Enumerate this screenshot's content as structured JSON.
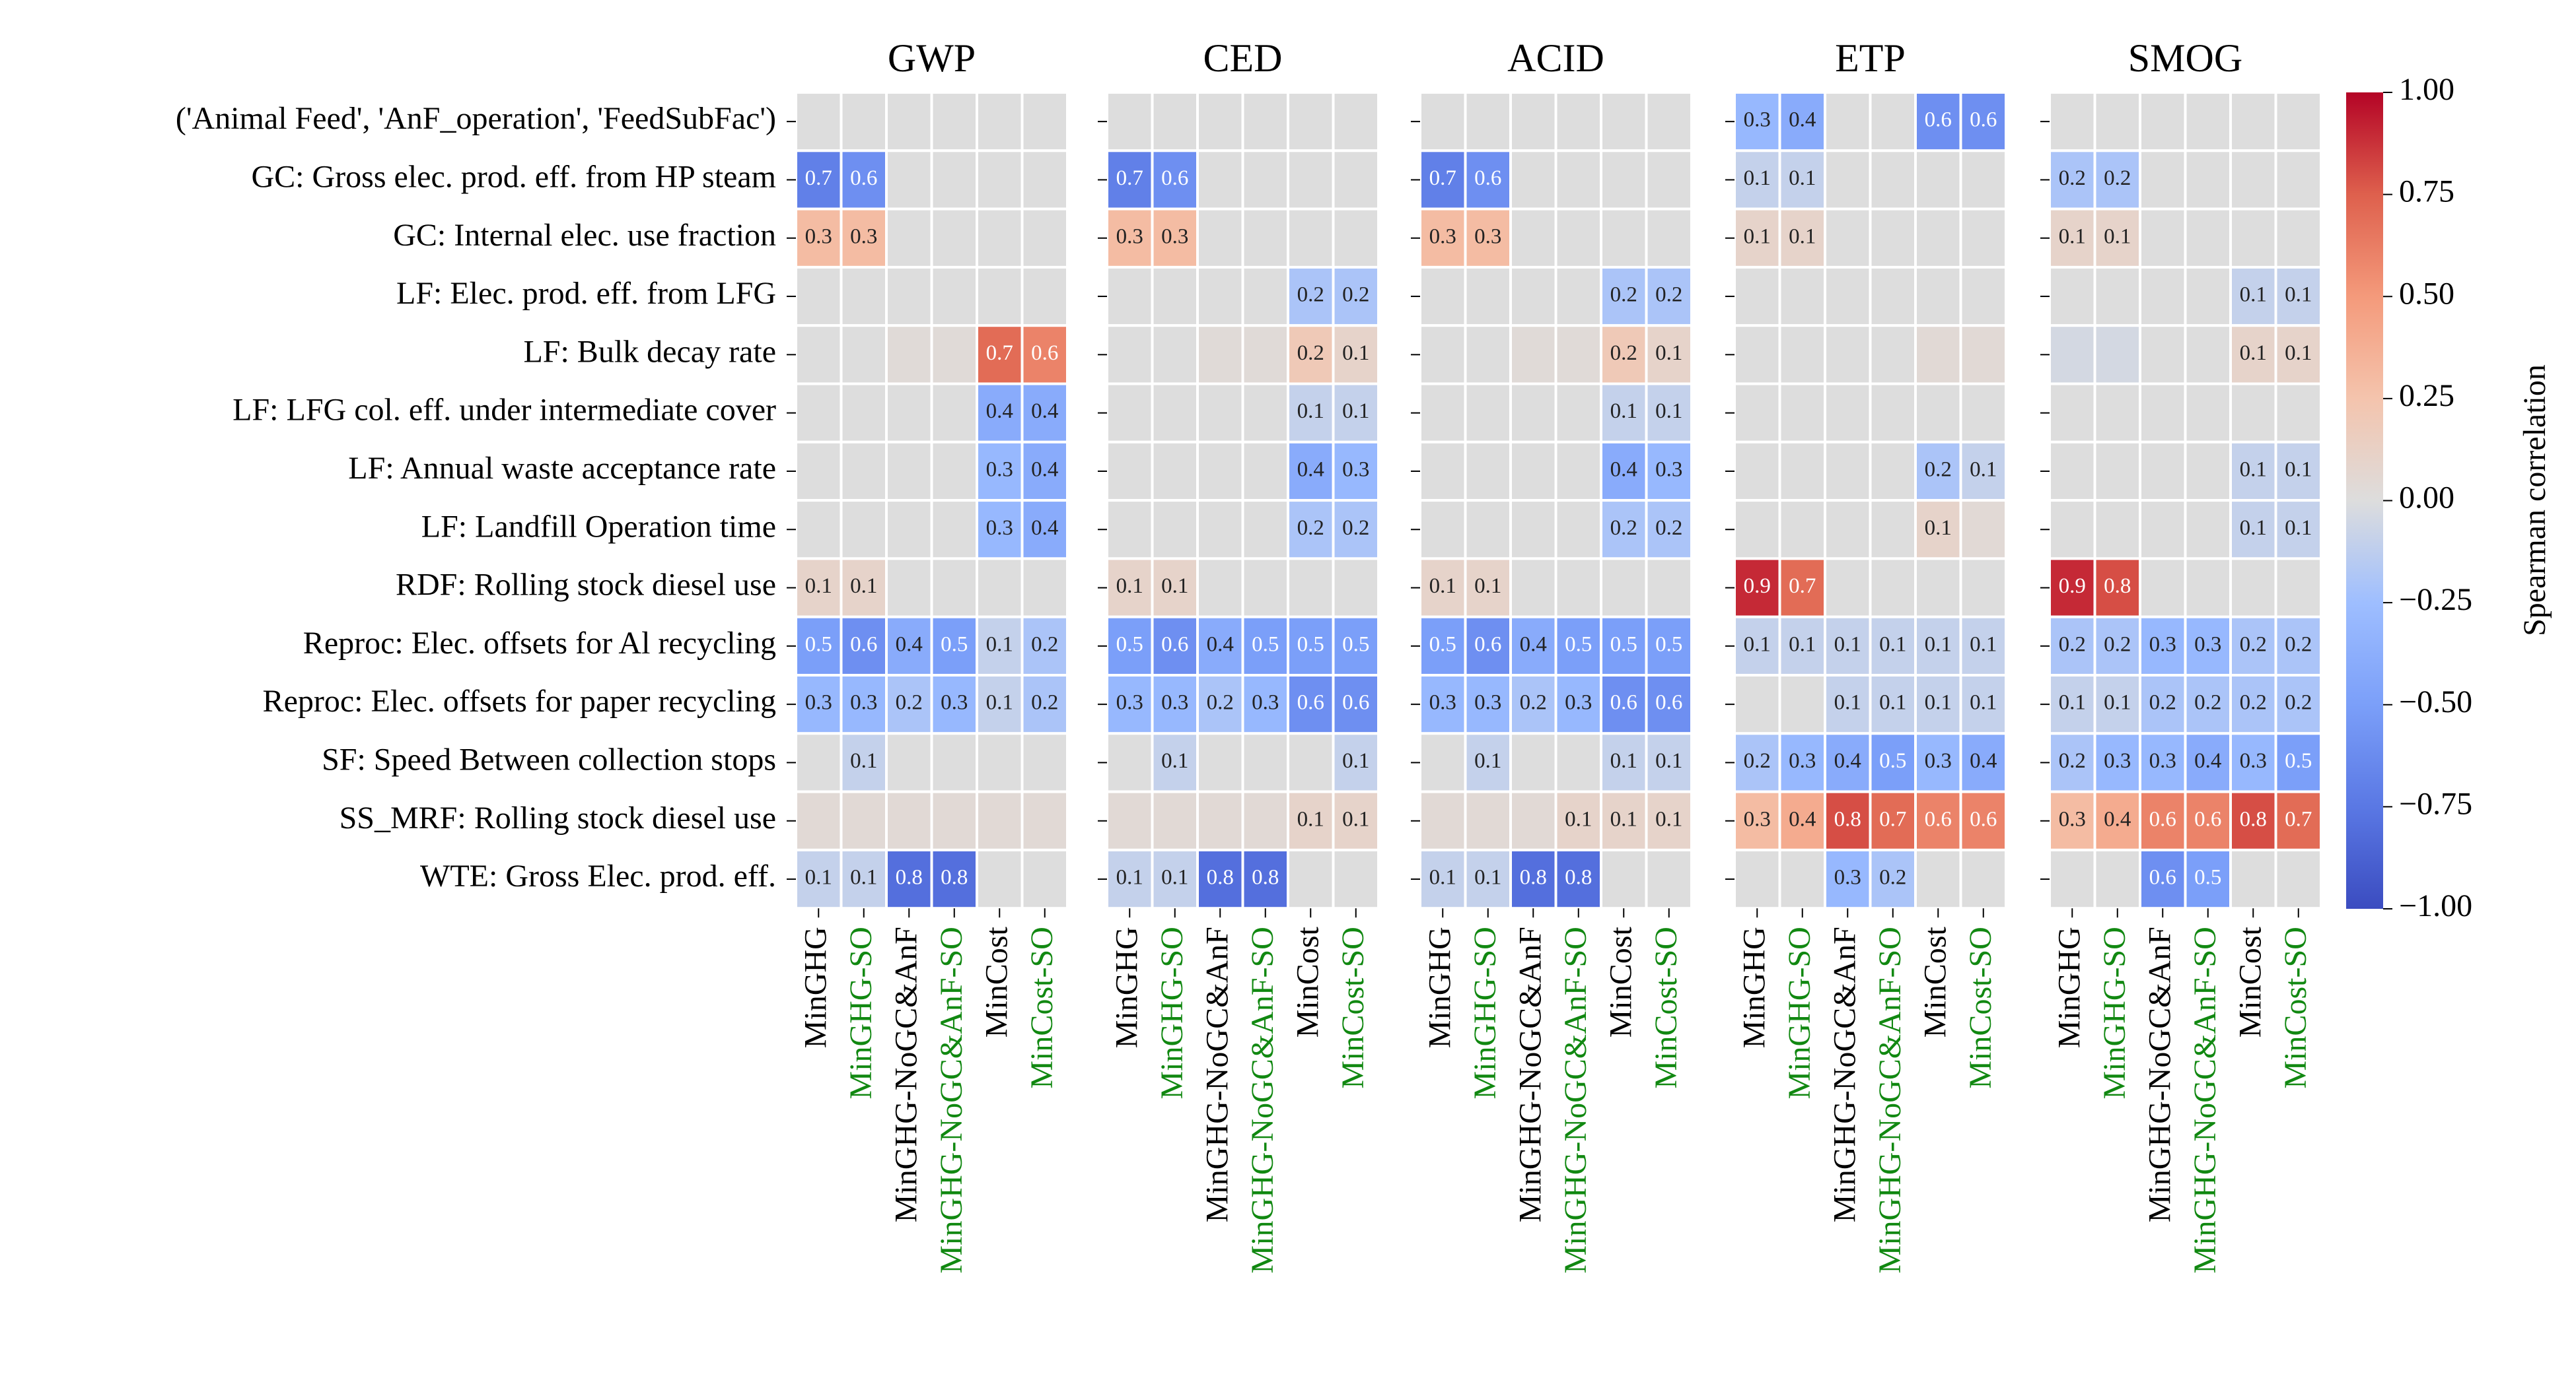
{
  "chart_data": {
    "type": "heatmap",
    "rows": [
      "('Animal Feed', 'AnF_operation', 'FeedSubFac')",
      "GC: Gross elec. prod. eff. from HP steam",
      "GC: Internal elec. use fraction",
      "LF: Elec. prod. eff. from LFG",
      "LF: Bulk decay rate",
      "LF: LFG col. eff. under intermediate cover",
      "LF: Annual waste acceptance rate",
      "LF: Landfill Operation time",
      "RDF: Rolling stock diesel use",
      "Reproc: Elec. offsets for Al recycling",
      "Reproc: Elec. offsets for paper recycling",
      "SF: Speed Between collection stops",
      "SS_MRF: Rolling stock diesel use",
      "WTE: Gross Elec. prod. eff."
    ],
    "columns": [
      "MinGHG",
      "MinGHG-SO",
      "MinGHG-NoGC&AnF",
      "MinGHG-NoGC&AnF-SO",
      "MinCost",
      "MinCost-SO"
    ],
    "column_colors": [
      "#000000",
      "#118811",
      "#000000",
      "#118811",
      "#000000",
      "#118811"
    ],
    "colorbar": {
      "label": "Spearman correlation",
      "range": [
        -1.0,
        1.0
      ],
      "ticks": [
        "1.00",
        "0.75",
        "0.50",
        "0.25",
        "0.00",
        "−0.25",
        "−0.50",
        "−0.75",
        "−1.00"
      ]
    },
    "panels": [
      {
        "title": "GWP",
        "values": [
          [
            0.0,
            0.0,
            0.0,
            0.0,
            0.0,
            0.0
          ],
          [
            -0.7,
            -0.6,
            0.0,
            0.0,
            0.0,
            0.0
          ],
          [
            0.3,
            0.3,
            0.0,
            0.0,
            0.0,
            0.0
          ],
          [
            0.0,
            0.0,
            0.0,
            0.0,
            0.0,
            0.0
          ],
          [
            0.0,
            0.0,
            0.03,
            0.03,
            0.7,
            0.6
          ],
          [
            0.0,
            0.0,
            0.0,
            0.0,
            -0.4,
            -0.4
          ],
          [
            0.0,
            0.0,
            0.0,
            0.0,
            -0.3,
            -0.4
          ],
          [
            0.0,
            0.0,
            0.0,
            0.0,
            -0.3,
            -0.4
          ],
          [
            0.1,
            0.1,
            0.0,
            0.0,
            0.0,
            0.0
          ],
          [
            -0.5,
            -0.6,
            -0.4,
            -0.5,
            -0.1,
            -0.2
          ],
          [
            -0.3,
            -0.3,
            -0.2,
            -0.3,
            -0.1,
            -0.2
          ],
          [
            0.0,
            -0.1,
            0.0,
            0.0,
            0.0,
            0.0
          ],
          [
            0.04,
            0.04,
            0.04,
            0.04,
            0.04,
            0.04
          ],
          [
            -0.1,
            -0.1,
            -0.8,
            -0.8,
            0.0,
            0.0
          ]
        ],
        "labels": [
          [
            "",
            "",
            "",
            "",
            "",
            ""
          ],
          [
            "0.7",
            "0.6",
            "",
            "",
            "",
            ""
          ],
          [
            "0.3",
            "0.3",
            "",
            "",
            "",
            ""
          ],
          [
            "",
            "",
            "",
            "",
            "",
            ""
          ],
          [
            "",
            "",
            "",
            "",
            "0.7",
            "0.6"
          ],
          [
            "",
            "",
            "",
            "",
            "0.4",
            "0.4"
          ],
          [
            "",
            "",
            "",
            "",
            "0.3",
            "0.4"
          ],
          [
            "",
            "",
            "",
            "",
            "0.3",
            "0.4"
          ],
          [
            "0.1",
            "0.1",
            "",
            "",
            "",
            ""
          ],
          [
            "0.5",
            "0.6",
            "0.4",
            "0.5",
            "0.1",
            "0.2"
          ],
          [
            "0.3",
            "0.3",
            "0.2",
            "0.3",
            "0.1",
            "0.2"
          ],
          [
            "",
            "0.1",
            "",
            "",
            "",
            ""
          ],
          [
            "",
            "",
            "",
            "",
            "",
            ""
          ],
          [
            "0.1",
            "0.1",
            "0.8",
            "0.8",
            "",
            ""
          ]
        ]
      },
      {
        "title": "CED",
        "values": [
          [
            0.0,
            0.0,
            0.0,
            0.0,
            0.0,
            0.0
          ],
          [
            -0.7,
            -0.6,
            0.0,
            0.0,
            0.0,
            0.0
          ],
          [
            0.3,
            0.3,
            0.0,
            0.0,
            0.0,
            0.0
          ],
          [
            0.0,
            0.0,
            0.0,
            0.0,
            -0.2,
            -0.2
          ],
          [
            0.0,
            0.0,
            0.03,
            0.03,
            0.2,
            0.1
          ],
          [
            0.0,
            0.0,
            0.0,
            0.0,
            -0.1,
            -0.1
          ],
          [
            0.0,
            0.0,
            0.0,
            0.0,
            -0.4,
            -0.3
          ],
          [
            0.0,
            0.0,
            0.0,
            0.0,
            -0.2,
            -0.2
          ],
          [
            0.1,
            0.1,
            0.0,
            0.0,
            0.0,
            0.0
          ],
          [
            -0.5,
            -0.6,
            -0.4,
            -0.5,
            -0.5,
            -0.5
          ],
          [
            -0.3,
            -0.3,
            -0.2,
            -0.3,
            -0.6,
            -0.6
          ],
          [
            0.0,
            -0.1,
            0.0,
            0.0,
            0.0,
            -0.1
          ],
          [
            0.04,
            0.04,
            0.04,
            0.04,
            0.1,
            0.1
          ],
          [
            -0.1,
            -0.1,
            -0.8,
            -0.8,
            0.0,
            0.0
          ]
        ],
        "labels": [
          [
            "",
            "",
            "",
            "",
            "",
            ""
          ],
          [
            "0.7",
            "0.6",
            "",
            "",
            "",
            ""
          ],
          [
            "0.3",
            "0.3",
            "",
            "",
            "",
            ""
          ],
          [
            "",
            "",
            "",
            "",
            "0.2",
            "0.2"
          ],
          [
            "",
            "",
            "",
            "",
            "0.2",
            "0.1"
          ],
          [
            "",
            "",
            "",
            "",
            "0.1",
            "0.1"
          ],
          [
            "",
            "",
            "",
            "",
            "0.4",
            "0.3"
          ],
          [
            "",
            "",
            "",
            "",
            "0.2",
            "0.2"
          ],
          [
            "0.1",
            "0.1",
            "",
            "",
            "",
            ""
          ],
          [
            "0.5",
            "0.6",
            "0.4",
            "0.5",
            "0.5",
            "0.5"
          ],
          [
            "0.3",
            "0.3",
            "0.2",
            "0.3",
            "0.6",
            "0.6"
          ],
          [
            "",
            "0.1",
            "",
            "",
            "",
            "0.1"
          ],
          [
            "",
            "",
            "",
            "",
            "0.1",
            "0.1"
          ],
          [
            "0.1",
            "0.1",
            "0.8",
            "0.8",
            "",
            ""
          ]
        ]
      },
      {
        "title": "ACID",
        "values": [
          [
            0.0,
            0.0,
            0.0,
            0.0,
            0.0,
            0.0
          ],
          [
            -0.7,
            -0.6,
            0.0,
            0.0,
            0.0,
            0.0
          ],
          [
            0.3,
            0.3,
            0.0,
            0.0,
            0.0,
            0.0
          ],
          [
            0.0,
            0.0,
            0.0,
            0.0,
            -0.2,
            -0.2
          ],
          [
            0.0,
            0.0,
            0.03,
            0.03,
            0.2,
            0.1
          ],
          [
            0.0,
            0.0,
            0.0,
            0.0,
            -0.1,
            -0.1
          ],
          [
            0.0,
            0.0,
            0.0,
            0.0,
            -0.4,
            -0.3
          ],
          [
            0.0,
            0.0,
            0.0,
            0.0,
            -0.2,
            -0.2
          ],
          [
            0.1,
            0.1,
            0.0,
            0.0,
            0.0,
            0.0
          ],
          [
            -0.5,
            -0.6,
            -0.4,
            -0.5,
            -0.5,
            -0.5
          ],
          [
            -0.3,
            -0.3,
            -0.2,
            -0.3,
            -0.6,
            -0.6
          ],
          [
            0.0,
            -0.1,
            0.0,
            0.0,
            -0.1,
            -0.1
          ],
          [
            0.04,
            0.04,
            0.04,
            0.1,
            0.1,
            0.1
          ],
          [
            -0.1,
            -0.1,
            -0.8,
            -0.8,
            0.0,
            0.0
          ]
        ],
        "labels": [
          [
            "",
            "",
            "",
            "",
            "",
            ""
          ],
          [
            "0.7",
            "0.6",
            "",
            "",
            "",
            ""
          ],
          [
            "0.3",
            "0.3",
            "",
            "",
            "",
            ""
          ],
          [
            "",
            "",
            "",
            "",
            "0.2",
            "0.2"
          ],
          [
            "",
            "",
            "",
            "",
            "0.2",
            "0.1"
          ],
          [
            "",
            "",
            "",
            "",
            "0.1",
            "0.1"
          ],
          [
            "",
            "",
            "",
            "",
            "0.4",
            "0.3"
          ],
          [
            "",
            "",
            "",
            "",
            "0.2",
            "0.2"
          ],
          [
            "0.1",
            "0.1",
            "",
            "",
            "",
            ""
          ],
          [
            "0.5",
            "0.6",
            "0.4",
            "0.5",
            "0.5",
            "0.5"
          ],
          [
            "0.3",
            "0.3",
            "0.2",
            "0.3",
            "0.6",
            "0.6"
          ],
          [
            "",
            "0.1",
            "",
            "",
            "0.1",
            "0.1"
          ],
          [
            "",
            "",
            "",
            "0.1",
            "0.1",
            "0.1"
          ],
          [
            "0.1",
            "0.1",
            "0.8",
            "0.8",
            "",
            ""
          ]
        ]
      },
      {
        "title": "ETP",
        "values": [
          [
            -0.3,
            -0.4,
            0.0,
            0.0,
            -0.6,
            -0.6
          ],
          [
            -0.1,
            -0.1,
            0.0,
            0.0,
            0.0,
            0.0
          ],
          [
            0.1,
            0.1,
            0.0,
            0.0,
            0.0,
            0.0
          ],
          [
            0.0,
            0.0,
            0.0,
            0.0,
            0.0,
            0.0
          ],
          [
            0.0,
            0.0,
            0.0,
            0.0,
            0.04,
            0.04
          ],
          [
            0.0,
            0.0,
            0.0,
            0.0,
            0.0,
            0.0
          ],
          [
            0.0,
            0.0,
            0.0,
            0.0,
            -0.2,
            -0.1
          ],
          [
            0.0,
            0.0,
            0.0,
            0.0,
            0.1,
            0.04
          ],
          [
            0.9,
            0.7,
            0.0,
            0.0,
            0.0,
            0.0
          ],
          [
            -0.1,
            -0.1,
            -0.1,
            -0.1,
            -0.1,
            -0.1
          ],
          [
            0.0,
            0.0,
            -0.1,
            -0.1,
            -0.1,
            -0.1
          ],
          [
            -0.2,
            -0.3,
            -0.4,
            -0.5,
            -0.3,
            -0.4
          ],
          [
            0.3,
            0.4,
            0.8,
            0.7,
            0.6,
            0.6
          ],
          [
            0.0,
            0.0,
            -0.3,
            -0.2,
            0.0,
            0.0
          ]
        ],
        "labels": [
          [
            "0.3",
            "0.4",
            "",
            "",
            "0.6",
            "0.6"
          ],
          [
            "0.1",
            "0.1",
            "",
            "",
            "",
            ""
          ],
          [
            "0.1",
            "0.1",
            "",
            "",
            "",
            ""
          ],
          [
            "",
            "",
            "",
            "",
            "",
            ""
          ],
          [
            "",
            "",
            "",
            "",
            "",
            ""
          ],
          [
            "",
            "",
            "",
            "",
            "",
            ""
          ],
          [
            "",
            "",
            "",
            "",
            "0.2",
            "0.1"
          ],
          [
            "",
            "",
            "",
            "",
            "0.1",
            ""
          ],
          [
            "0.9",
            "0.7",
            "",
            "",
            "",
            ""
          ],
          [
            "0.1",
            "0.1",
            "0.1",
            "0.1",
            "0.1",
            "0.1"
          ],
          [
            "",
            "",
            "0.1",
            "0.1",
            "0.1",
            "0.1"
          ],
          [
            "0.2",
            "0.3",
            "0.4",
            "0.5",
            "0.3",
            "0.4"
          ],
          [
            "0.3",
            "0.4",
            "0.8",
            "0.7",
            "0.6",
            "0.6"
          ],
          [
            "",
            "",
            "0.3",
            "0.2",
            "",
            ""
          ]
        ]
      },
      {
        "title": "SMOG",
        "values": [
          [
            0.0,
            0.0,
            0.0,
            0.0,
            0.0,
            0.0
          ],
          [
            -0.2,
            -0.2,
            0.0,
            0.0,
            0.0,
            0.0
          ],
          [
            0.1,
            0.1,
            0.0,
            0.0,
            0.0,
            0.0
          ],
          [
            0.0,
            0.0,
            0.0,
            0.0,
            -0.1,
            -0.1
          ],
          [
            -0.04,
            -0.04,
            0.0,
            0.0,
            0.1,
            0.1
          ],
          [
            0.0,
            0.0,
            0.0,
            0.0,
            0.0,
            0.0
          ],
          [
            0.0,
            0.0,
            0.0,
            0.0,
            -0.1,
            -0.1
          ],
          [
            0.0,
            0.0,
            0.0,
            0.0,
            -0.1,
            -0.1
          ],
          [
            0.9,
            0.8,
            0.0,
            0.0,
            0.0,
            0.0
          ],
          [
            -0.2,
            -0.2,
            -0.3,
            -0.3,
            -0.2,
            -0.2
          ],
          [
            -0.1,
            -0.1,
            -0.2,
            -0.2,
            -0.2,
            -0.2
          ],
          [
            -0.2,
            -0.3,
            -0.3,
            -0.4,
            -0.3,
            -0.5
          ],
          [
            0.3,
            0.4,
            0.6,
            0.6,
            0.8,
            0.7
          ],
          [
            0.0,
            0.0,
            -0.6,
            -0.5,
            0.0,
            0.0
          ]
        ],
        "labels": [
          [
            "",
            "",
            "",
            "",
            "",
            ""
          ],
          [
            "0.2",
            "0.2",
            "",
            "",
            "",
            ""
          ],
          [
            "0.1",
            "0.1",
            "",
            "",
            "",
            ""
          ],
          [
            "",
            "",
            "",
            "",
            "0.1",
            "0.1"
          ],
          [
            "",
            "",
            "",
            "",
            "0.1",
            "0.1"
          ],
          [
            "",
            "",
            "",
            "",
            "",
            ""
          ],
          [
            "",
            "",
            "",
            "",
            "0.1",
            "0.1"
          ],
          [
            "",
            "",
            "",
            "",
            "0.1",
            "0.1"
          ],
          [
            "0.9",
            "0.8",
            "",
            "",
            "",
            ""
          ],
          [
            "0.2",
            "0.2",
            "0.3",
            "0.3",
            "0.2",
            "0.2"
          ],
          [
            "0.1",
            "0.1",
            "0.2",
            "0.2",
            "0.2",
            "0.2"
          ],
          [
            "0.2",
            "0.3",
            "0.3",
            "0.4",
            "0.3",
            "0.5"
          ],
          [
            "0.3",
            "0.4",
            "0.6",
            "0.6",
            "0.8",
            "0.7"
          ],
          [
            "",
            "",
            "0.6",
            "0.5",
            "",
            ""
          ]
        ]
      }
    ]
  }
}
